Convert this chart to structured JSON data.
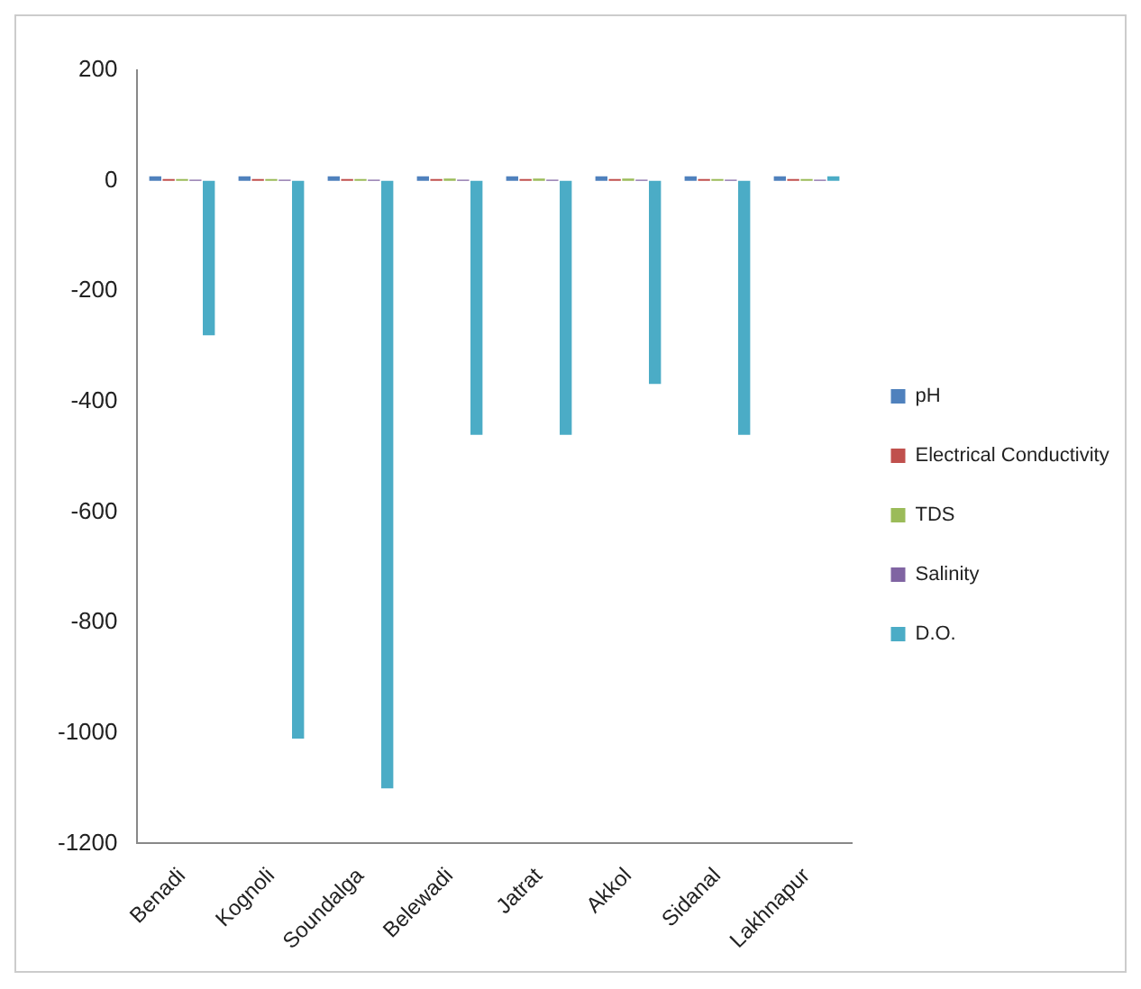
{
  "chart_data": {
    "type": "bar",
    "categories": [
      "Benadi",
      "Kognoli",
      "Soundalga",
      "Belewadi",
      "Jatrat",
      "Akkol",
      "Sidanal",
      "Lakhnapur"
    ],
    "series": [
      {
        "name": "pH",
        "color": "#4f81bd",
        "values": [
          8,
          8,
          8,
          8,
          8,
          8,
          8,
          8
        ]
      },
      {
        "name": "Electrical Conductivity",
        "color": "#c0504d",
        "values": [
          3,
          3,
          3,
          3,
          3,
          3,
          3,
          3
        ]
      },
      {
        "name": "TDS",
        "color": "#9bbb59",
        "values": [
          3,
          3,
          3,
          4,
          4,
          4,
          3,
          3
        ]
      },
      {
        "name": "Salinity",
        "color": "#8064a2",
        "values": [
          2,
          2,
          2,
          2,
          2,
          2,
          2,
          2
        ]
      },
      {
        "name": "D.O.",
        "color": "#4bacc6",
        "values": [
          -280,
          -1010,
          -1100,
          -460,
          -460,
          -368,
          -460,
          8
        ]
      }
    ],
    "ylim": [
      -1200,
      200
    ],
    "yticks": [
      -1200,
      -1000,
      -800,
      -600,
      -400,
      -200,
      0,
      200
    ],
    "grid": false,
    "legend": "right"
  }
}
